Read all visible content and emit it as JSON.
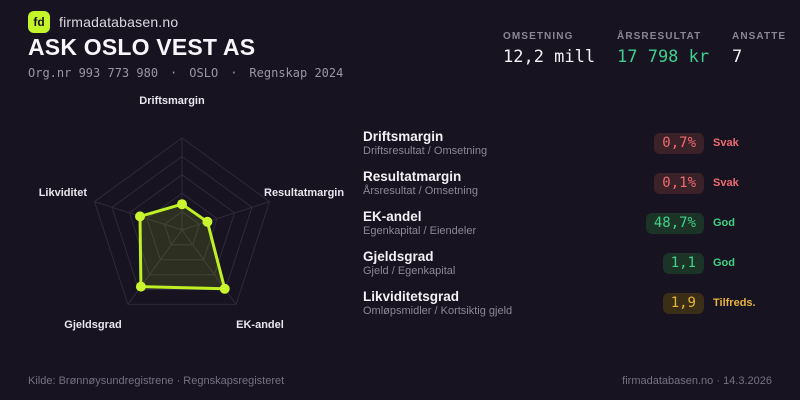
{
  "brand": {
    "logo": "fd",
    "name": "firmadatabasen.no"
  },
  "header": {
    "title": "ASK OSLO VEST AS",
    "org": "Org.nr 993 773 980",
    "sep": "·",
    "city": "OSLO",
    "report": "Regnskap 2024"
  },
  "stats": [
    {
      "label": "OMSETNING",
      "value": "12,2 mill"
    },
    {
      "label": "ÅRSRESULTAT",
      "value": "17 798 kr"
    },
    {
      "label": "ANSATTE",
      "value": "7"
    }
  ],
  "chart_data": {
    "type": "radar",
    "axes": [
      "Driftsmargin",
      "Resultatmargin",
      "EK-andel",
      "Gjeldsgrad",
      "Likviditet"
    ],
    "values": [
      0.28,
      0.29,
      0.79,
      0.76,
      0.48
    ],
    "value_note": "fraction of max radius as drawn; underlying metric values are in metrics[]",
    "rings": 5,
    "scale": [
      0,
      1
    ],
    "stroke": "#bfef24",
    "fill": "rgba(195,245,40,0.13)",
    "grid_color": "#2e2a3b"
  },
  "metrics": [
    {
      "title": "Driftsmargin",
      "formula": "Driftsresultat / Omsetning",
      "value": "0,7%",
      "rating": "Svak",
      "status": "svak"
    },
    {
      "title": "Resultatmargin",
      "formula": "Årsresultat / Omsetning",
      "value": "0,1%",
      "rating": "Svak",
      "status": "svak"
    },
    {
      "title": "EK-andel",
      "formula": "Egenkapital / Eiendeler",
      "value": "48,7%",
      "rating": "God",
      "status": "god"
    },
    {
      "title": "Gjeldsgrad",
      "formula": "Gjeld / Egenkapital",
      "value": "1,1",
      "rating": "God",
      "status": "god"
    },
    {
      "title": "Likviditetsgrad",
      "formula": "Omløpsmidler / Kortsiktig gjeld",
      "value": "1,9",
      "rating": "Tilfreds.",
      "status": "tilfreds"
    }
  ],
  "footer": {
    "source": "Kilde: Brønnøysundregistrene · Regnskapsregisteret",
    "site": "firmadatabasen.no · 14.3.2026"
  },
  "colors": {
    "background": "#171320",
    "accent": "#c3f528",
    "positive": "#3ecf8e",
    "negative": "#ef6b70",
    "warning": "#e8b43c"
  }
}
